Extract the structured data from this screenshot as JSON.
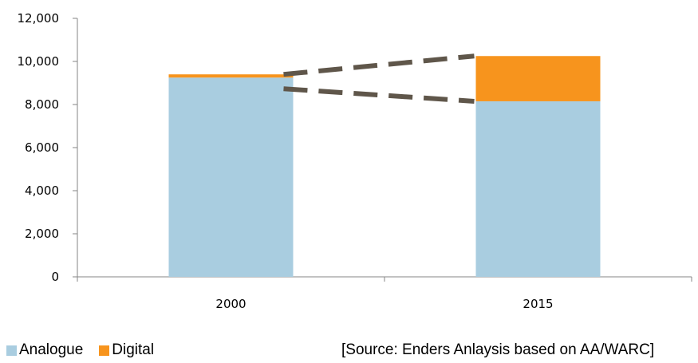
{
  "chart_data": {
    "type": "bar",
    "stacked": true,
    "categories": [
      "2000",
      "2015"
    ],
    "series": [
      {
        "name": "Analogue",
        "values": [
          9250,
          8150
        ],
        "color": "#a9cde0"
      },
      {
        "name": "Digital",
        "values": [
          150,
          2100
        ],
        "color": "#f7941d"
      }
    ],
    "ylim": [
      0,
      12000
    ],
    "yticks": [
      0,
      2000,
      4000,
      6000,
      8000,
      10000,
      12000
    ],
    "ytick_labels": [
      "0",
      "2,000",
      "4,000",
      "6,000",
      "8,000",
      "10,000",
      "12,000"
    ],
    "grid": false,
    "legend": "bottom-left",
    "connector_lines": {
      "style": "dashed",
      "color": "#5f564a"
    }
  },
  "source_note": "[Source: Enders Anlaysis based on AA/WARC]"
}
